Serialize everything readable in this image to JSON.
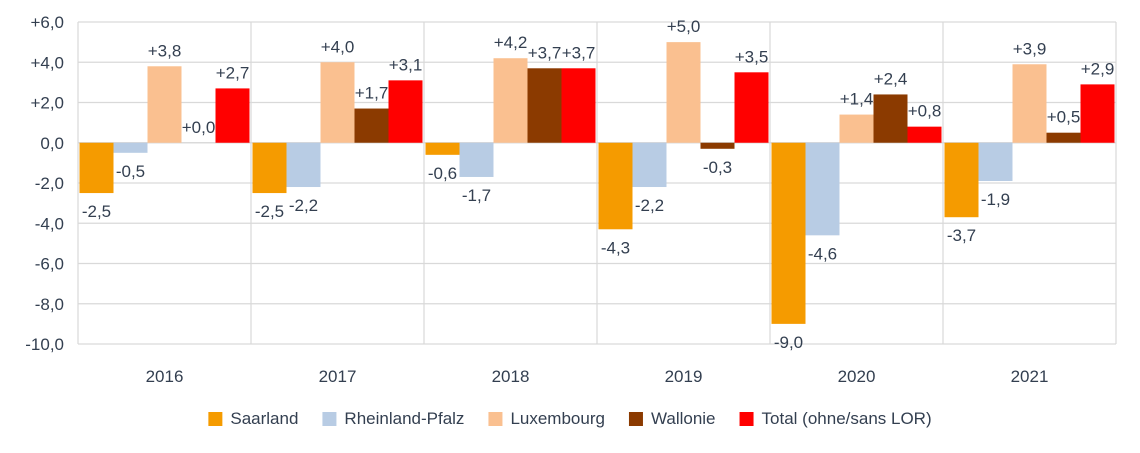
{
  "chart_data": {
    "type": "bar",
    "categories": [
      "2016",
      "2017",
      "2018",
      "2019",
      "2020",
      "2021"
    ],
    "series": [
      {
        "name": "Saarland",
        "color": "#f59b00",
        "values": [
          -2.5,
          -2.5,
          -0.6,
          -4.3,
          -9.0,
          -3.7
        ],
        "labels": [
          "-2,5",
          "-2,5",
          "-0,6",
          "-4,3",
          "-9,0",
          "-3,7"
        ]
      },
      {
        "name": "Rheinland-Pfalz",
        "color": "#b8cce4",
        "values": [
          -0.5,
          -2.2,
          -1.7,
          -2.2,
          -4.6,
          -1.9
        ],
        "labels": [
          "-0,5",
          "-2,2",
          "-1,7",
          "-2,2",
          "-4,6",
          "-1,9"
        ]
      },
      {
        "name": "Luxembourg",
        "color": "#fac090",
        "values": [
          3.8,
          4.0,
          4.2,
          5.0,
          1.4,
          3.9
        ],
        "labels": [
          "+3,8",
          "+4,0",
          "+4,2",
          "+5,0",
          "+1,4",
          "+3,9"
        ]
      },
      {
        "name": "Wallonie",
        "color": "#8b3a00",
        "values": [
          0.0,
          1.7,
          3.7,
          -0.3,
          2.4,
          0.5
        ],
        "labels": [
          "+0,0",
          "+1,7",
          "+3,7",
          "-0,3",
          "+2,4",
          "+0,5"
        ]
      },
      {
        "name": "Total (ohne/sans LOR)",
        "color": "#ff0000",
        "values": [
          2.7,
          3.1,
          3.7,
          3.5,
          0.8,
          2.9
        ],
        "labels": [
          "+2,7",
          "+3,1",
          "+3,7",
          "+3,5",
          "+0,8",
          "+2,9"
        ]
      }
    ],
    "yticks": [
      "+6,0",
      "+4,0",
      "+2,0",
      "0,0",
      "-2,0",
      "-4,0",
      "-6,0",
      "-8,0",
      "-10,0"
    ],
    "ylim": [
      -10,
      6
    ],
    "grid": true,
    "legend_position": "bottom"
  }
}
